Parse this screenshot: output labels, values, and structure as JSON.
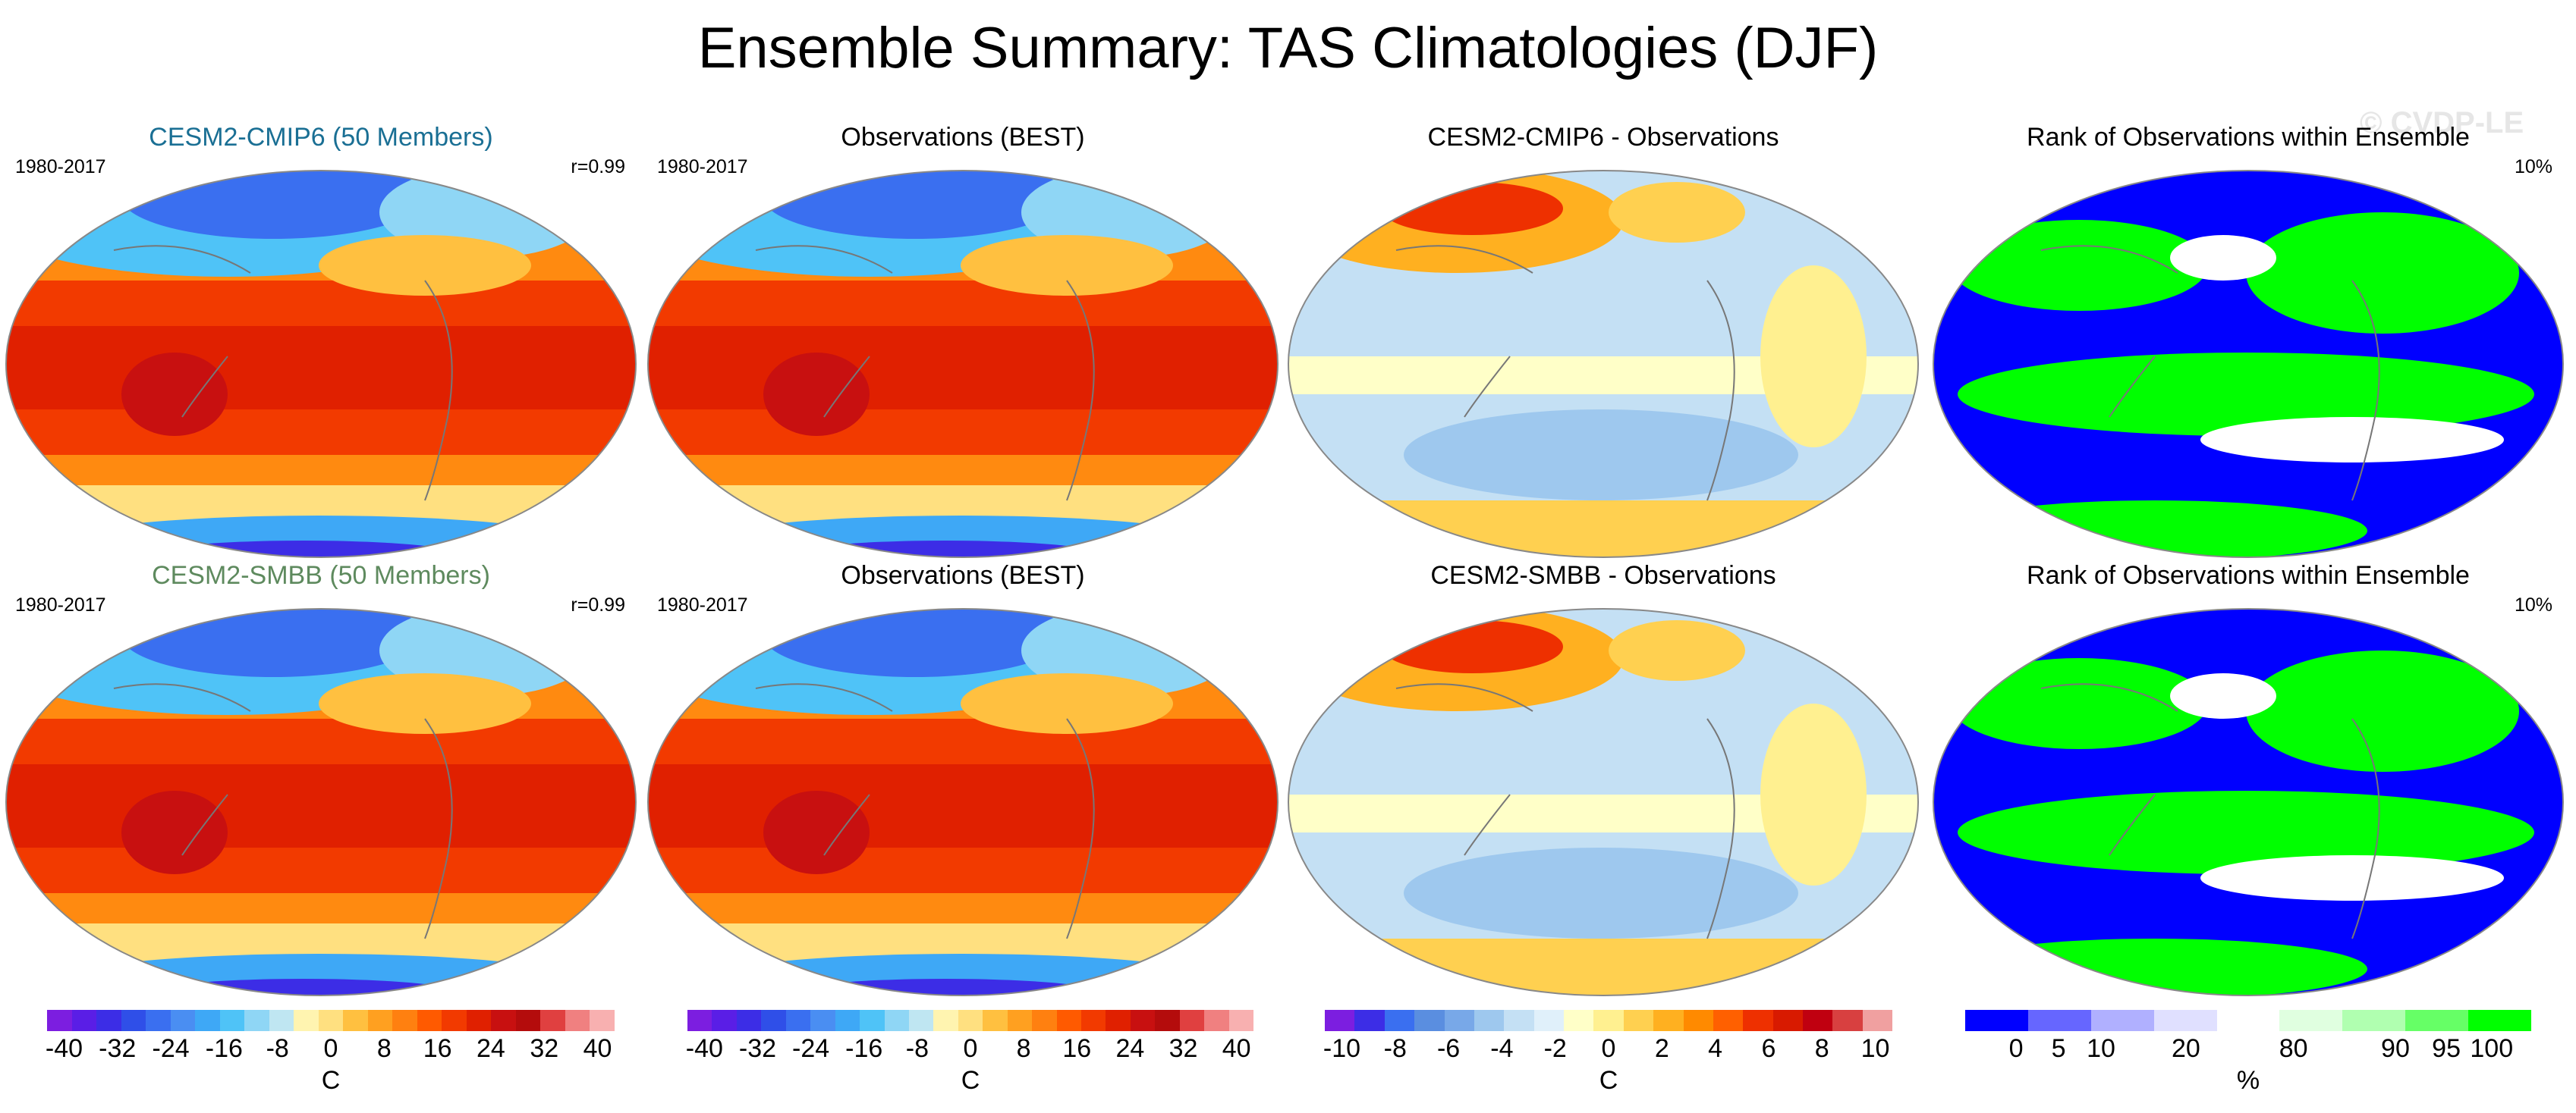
{
  "title": "Ensemble Summary: TAS Climatologies (DJF)",
  "watermark": "© CVDP-LE",
  "panels": [
    {
      "title": "CESM2-CMIP6 (50 Members)",
      "title_color": "#1a6f94",
      "left": "1980-2017",
      "right": "r=0.99",
      "kind": "temp"
    },
    {
      "title": "Observations (BEST)",
      "title_color": "#000000",
      "left": "1980-2017",
      "right": "",
      "kind": "temp"
    },
    {
      "title": "CESM2-CMIP6 - Observations",
      "title_color": "#000000",
      "left": "",
      "right": "",
      "kind": "diff"
    },
    {
      "title": "Rank of Observations within Ensemble",
      "title_color": "#000000",
      "left": "",
      "right": "10%",
      "kind": "rank"
    },
    {
      "title": "CESM2-SMBB (50 Members)",
      "title_color": "#5e8a5e",
      "left": "1980-2017",
      "right": "r=0.99",
      "kind": "temp"
    },
    {
      "title": "Observations (BEST)",
      "title_color": "#000000",
      "left": "1980-2017",
      "right": "",
      "kind": "temp"
    },
    {
      "title": "CESM2-SMBB - Observations",
      "title_color": "#000000",
      "left": "",
      "right": "",
      "kind": "diff"
    },
    {
      "title": "Rank of Observations within Ensemble",
      "title_color": "#000000",
      "left": "",
      "right": "10%",
      "kind": "rank"
    }
  ],
  "colorbars": [
    {
      "unit": "C",
      "ticks": [
        "-40",
        "-32",
        "-24",
        "-16",
        "-8",
        "0",
        "8",
        "16",
        "24",
        "32",
        "40"
      ],
      "colors": [
        "#7c1ee0",
        "#5a1ee6",
        "#3c2de6",
        "#2f4fe8",
        "#3a6ff0",
        "#4a8ef2",
        "#3ea8f6",
        "#4fc3f7",
        "#8fd6f5",
        "#bfe6f2",
        "#fff4b0",
        "#ffe080",
        "#ffc040",
        "#ffa020",
        "#ff8010",
        "#ff5a00",
        "#f23a00",
        "#e02000",
        "#c81010",
        "#b40c0c",
        "#e04040",
        "#f08080",
        "#f8b0b0"
      ]
    },
    {
      "unit": "C",
      "ticks": [
        "-40",
        "-32",
        "-24",
        "-16",
        "-8",
        "0",
        "8",
        "16",
        "24",
        "32",
        "40"
      ],
      "colors": [
        "#7c1ee0",
        "#5a1ee6",
        "#3c2de6",
        "#2f4fe8",
        "#3a6ff0",
        "#4a8ef2",
        "#3ea8f6",
        "#4fc3f7",
        "#8fd6f5",
        "#bfe6f2",
        "#fff4b0",
        "#ffe080",
        "#ffc040",
        "#ffa020",
        "#ff8010",
        "#ff5a00",
        "#f23a00",
        "#e02000",
        "#c81010",
        "#b40c0c",
        "#e04040",
        "#f08080",
        "#f8b0b0"
      ]
    },
    {
      "unit": "C",
      "ticks": [
        "-10",
        "-8",
        "-6",
        "-4",
        "-2",
        "0",
        "2",
        "4",
        "6",
        "8",
        "10"
      ],
      "colors": [
        "#7c1ee0",
        "#3c2de6",
        "#3a6ff0",
        "#5a8ee0",
        "#78a8e8",
        "#9ec8ee",
        "#c4e0f4",
        "#e0f0fa",
        "#ffffc8",
        "#fff090",
        "#ffd050",
        "#ffb020",
        "#ff8a00",
        "#ff6000",
        "#ee3000",
        "#d81a00",
        "#c00010",
        "#d84040",
        "#f0a0a0"
      ]
    },
    {
      "unit": "%",
      "ticks": [
        "0",
        "5",
        "10",
        "20",
        "80",
        "90",
        "95",
        "100"
      ],
      "colors": [
        "#0000ff",
        "#6666ff",
        "#b0b0ff",
        "#e0e0ff",
        "#ffffff",
        "#e0ffe0",
        "#b0ffb0",
        "#66ff66",
        "#00ff00"
      ]
    }
  ],
  "chart_data": [
    {
      "type": "heatmap",
      "title": "CESM2-CMIP6 (50 Members)",
      "period": "1980-2017",
      "pattern_correlation": 0.99,
      "units": "C",
      "range": [
        -40,
        40
      ]
    },
    {
      "type": "heatmap",
      "title": "Observations (BEST)",
      "period": "1980-2017",
      "units": "C",
      "range": [
        -40,
        40
      ]
    },
    {
      "type": "heatmap",
      "title": "CESM2-CMIP6 - Observations",
      "units": "C",
      "range": [
        -10,
        10
      ]
    },
    {
      "type": "heatmap",
      "title": "Rank of Observations within Ensemble",
      "units": "%",
      "annotation": "10%",
      "levels": [
        0,
        5,
        10,
        20,
        80,
        90,
        95,
        100
      ]
    },
    {
      "type": "heatmap",
      "title": "CESM2-SMBB (50 Members)",
      "period": "1980-2017",
      "pattern_correlation": 0.99,
      "units": "C",
      "range": [
        -40,
        40
      ]
    },
    {
      "type": "heatmap",
      "title": "Observations (BEST)",
      "period": "1980-2017",
      "units": "C",
      "range": [
        -40,
        40
      ]
    },
    {
      "type": "heatmap",
      "title": "CESM2-SMBB - Observations",
      "units": "C",
      "range": [
        -10,
        10
      ]
    },
    {
      "type": "heatmap",
      "title": "Rank of Observations within Ensemble",
      "units": "%",
      "annotation": "10%",
      "levels": [
        0,
        5,
        10,
        20,
        80,
        90,
        95,
        100
      ]
    }
  ]
}
